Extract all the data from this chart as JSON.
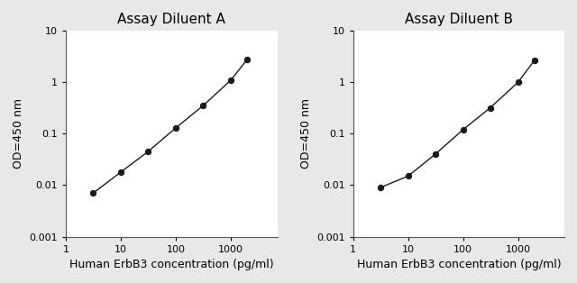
{
  "title_A": "Assay Diluent A",
  "title_B": "Assay Diluent B",
  "xlabel": "Human ErbB3 concentration (pg/ml)",
  "ylabel": "OD=450 nm",
  "xlim": [
    1,
    7000
  ],
  "ylim": [
    0.001,
    10
  ],
  "xticks": [
    1,
    10,
    100,
    1000
  ],
  "xtick_labels": [
    "1",
    "10",
    "100",
    "1000"
  ],
  "yticks": [
    0.001,
    0.01,
    0.1,
    1,
    10
  ],
  "ytick_labels": [
    "0.001",
    "0.01",
    "0.1",
    "1",
    "10"
  ],
  "x_A": [
    3.125,
    10,
    31.25,
    100,
    312.5,
    1000,
    2000
  ],
  "y_A": [
    0.007,
    0.018,
    0.045,
    0.13,
    0.35,
    1.1,
    2.8
  ],
  "x_B": [
    3.125,
    10,
    31.25,
    100,
    312.5,
    1000,
    2000
  ],
  "y_B": [
    0.009,
    0.015,
    0.04,
    0.12,
    0.32,
    1.0,
    2.7
  ],
  "line_color": "#1a1a1a",
  "marker_color": "#1a1a1a",
  "bg_color": "#e8e8e8",
  "plot_bg": "#ffffff",
  "title_fontsize": 11,
  "label_fontsize": 9,
  "tick_fontsize": 8
}
